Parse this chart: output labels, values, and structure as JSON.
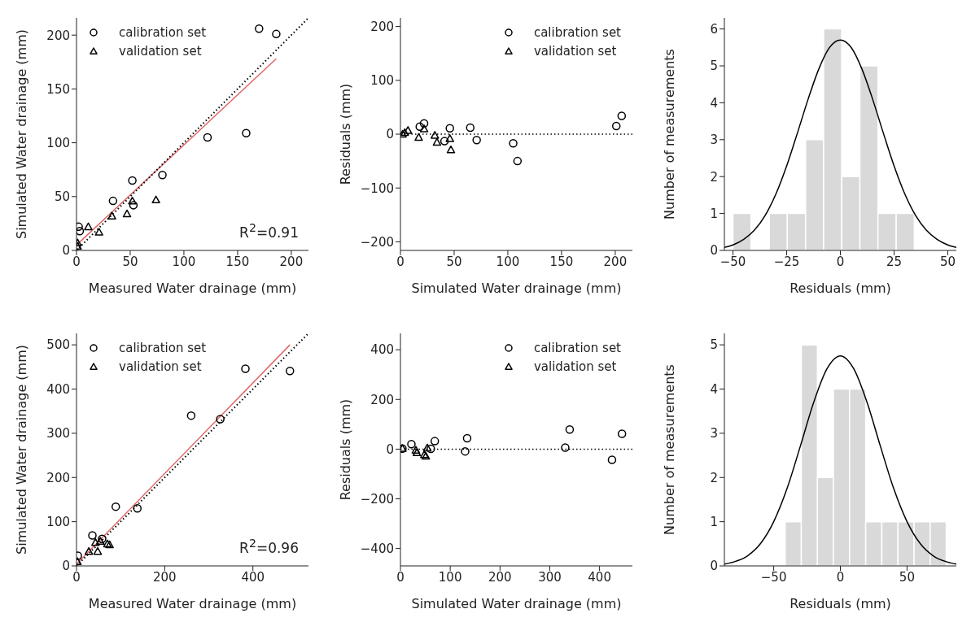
{
  "chart_data": [
    {
      "type": "scatter",
      "xlabel": "Measured Water drainage (mm)",
      "ylabel": "Simulated Water drainage (mm)",
      "xlim": [
        0,
        216
      ],
      "ylim": [
        0,
        216
      ],
      "xticks": [
        0,
        50,
        100,
        150,
        200
      ],
      "yticks": [
        0,
        50,
        100,
        150,
        200
      ],
      "legend": "top left",
      "annotations": [
        "R$^{2}$=0.91"
      ],
      "series": [
        {
          "name": "calibration set",
          "color": "#000000",
          "marker": "circle",
          "x": [
            2,
            3,
            34,
            52,
            53,
            80,
            122,
            158,
            170,
            186
          ],
          "values": [
            22,
            18,
            46,
            65,
            42,
            70,
            105,
            109,
            206,
            201
          ]
        },
        {
          "name": "validation set",
          "color": "#000000",
          "marker": "triangle",
          "x": [
            1,
            1,
            11,
            21,
            33,
            47,
            52,
            74
          ],
          "values": [
            4,
            7,
            22,
            17,
            32,
            34,
            46,
            47
          ]
        },
        {
          "type": "line",
          "color": "#e06666",
          "x": [
            0,
            186
          ],
          "values": [
            5,
            178
          ]
        },
        {
          "type": "line",
          "color": "#000000",
          "line_style": "dotted",
          "x": [
            0,
            216
          ],
          "values": [
            0,
            216
          ]
        }
      ]
    },
    {
      "type": "scatter",
      "xlabel": "Simulated Water drainage (mm)",
      "ylabel": "Residuals (mm)",
      "xlim": [
        0,
        216
      ],
      "ylim": [
        -216,
        216
      ],
      "xticks": [
        0,
        50,
        100,
        150,
        200
      ],
      "yticks": [
        -200,
        -100,
        0,
        100,
        200
      ],
      "legend": "top right",
      "ref_lines": [
        {
          "axis": "y",
          "value": 0,
          "color": "#000000",
          "line_style": "dotted"
        }
      ],
      "series": [
        {
          "name": "calibration set",
          "color": "#000000",
          "marker": "circle",
          "x": [
            18,
            22,
            41,
            46,
            65,
            71,
            105,
            109,
            201,
            206
          ],
          "values": [
            14,
            20,
            -13,
            11,
            12,
            -11,
            -17,
            -50,
            15,
            34
          ]
        },
        {
          "name": "validation set",
          "color": "#000000",
          "marker": "triangle",
          "x": [
            2,
            4,
            7,
            17,
            22,
            32,
            34,
            46,
            47
          ],
          "values": [
            0,
            3,
            7,
            -6,
            10,
            -2,
            -15,
            -8,
            -29
          ]
        }
      ]
    },
    {
      "type": "histogram",
      "xlabel": "Residuals (mm)",
      "ylabel": "Number of measurements",
      "xlim": [
        -54,
        54
      ],
      "ylim": [
        0,
        6.3
      ],
      "xticks": [
        -50,
        -25,
        0,
        25,
        50
      ],
      "yticks": [
        0,
        1,
        2,
        3,
        4,
        5,
        6
      ],
      "series": [
        {
          "color": "#d9d9d9",
          "bins": [
            -50,
            -41.6,
            -33.1,
            -24.7,
            -16.2,
            -7.8,
            0.6,
            9.1,
            17.5,
            26,
            34.4
          ],
          "values": [
            1,
            0,
            1,
            1,
            3,
            6,
            2,
            5,
            1,
            1
          ]
        },
        {
          "type": "line",
          "color": "#000000",
          "x": [
            -54,
            -50,
            -45,
            -40,
            -35,
            -30,
            -25,
            -20,
            -15,
            -10,
            -5,
            0,
            5,
            10,
            15,
            20,
            25,
            30,
            35,
            40,
            45,
            50,
            54
          ],
          "values": [
            0.08,
            0.15,
            0.3,
            0.55,
            0.95,
            1.53,
            2.29,
            3.18,
            4.1,
            4.92,
            5.5,
            5.7,
            5.5,
            4.92,
            4.1,
            3.18,
            2.29,
            1.53,
            0.95,
            0.55,
            0.3,
            0.15,
            0.08
          ]
        }
      ]
    },
    {
      "type": "scatter",
      "xlabel": "Measured Water drainage (mm)",
      "ylabel": "Simulated Water drainage (mm)",
      "xlim": [
        0,
        526
      ],
      "ylim": [
        0,
        526
      ],
      "xticks": [
        0,
        200,
        400
      ],
      "yticks": [
        0,
        100,
        200,
        300,
        400,
        500
      ],
      "legend": "top left",
      "annotations": [
        "R$^{2}$=0.96"
      ],
      "series": [
        {
          "name": "calibration set",
          "color": "#000000",
          "marker": "circle",
          "x": [
            3,
            36,
            58,
            89,
            138,
            260,
            326,
            383,
            484
          ],
          "values": [
            23,
            69,
            61,
            134,
            130,
            340,
            332,
            446,
            441
          ]
        },
        {
          "name": "validation set",
          "color": "#000000",
          "marker": "triangle",
          "x": [
            2,
            28,
            48,
            43,
            54,
            70,
            75
          ],
          "values": [
            10,
            33,
            33,
            53,
            56,
            50,
            48
          ]
        },
        {
          "type": "line",
          "color": "#e06666",
          "x": [
            0,
            484
          ],
          "values": [
            4,
            500
          ]
        },
        {
          "type": "line",
          "color": "#000000",
          "line_style": "dotted",
          "x": [
            0,
            526
          ],
          "values": [
            0,
            526
          ]
        }
      ]
    },
    {
      "type": "scatter",
      "xlabel": "Simulated Water drainage (mm)",
      "ylabel": "Residuals (mm)",
      "xlim": [
        0,
        466
      ],
      "ylim": [
        -470,
        466
      ],
      "xticks": [
        0,
        100,
        200,
        300,
        400
      ],
      "yticks": [
        -400,
        -200,
        0,
        200,
        400
      ],
      "legend": "top right",
      "ref_lines": [
        {
          "axis": "y",
          "value": 0,
          "color": "#000000",
          "line_style": "dotted"
        }
      ],
      "series": [
        {
          "name": "calibration set",
          "color": "#000000",
          "marker": "circle",
          "x": [
            4,
            22,
            61,
            69,
            130,
            134,
            331,
            340,
            425,
            445
          ],
          "values": [
            2,
            20,
            1,
            32,
            -9,
            44,
            6,
            79,
            -43,
            62
          ]
        },
        {
          "name": "validation set",
          "color": "#000000",
          "marker": "triangle",
          "x": [
            4,
            31,
            33,
            48,
            51,
            54
          ],
          "values": [
            3,
            -4,
            -14,
            -22,
            -28,
            5
          ]
        }
      ]
    },
    {
      "type": "histogram",
      "xlabel": "Residuals (mm)",
      "ylabel": "Number of measurements",
      "xlim": [
        -87,
        87
      ],
      "ylim": [
        0,
        5.26
      ],
      "xticks": [
        -50,
        0,
        50
      ],
      "yticks": [
        0,
        1,
        2,
        3,
        4,
        5
      ],
      "series": [
        {
          "color": "#d9d9d9",
          "bins": [
            -41.4,
            -29.3,
            -17.2,
            -5.2,
            6.9,
            19,
            31.1,
            43.2,
            55.3,
            67.4,
            79.4
          ],
          "values": [
            1,
            5,
            2,
            4,
            4,
            1,
            1,
            1,
            1,
            1
          ]
        },
        {
          "type": "line",
          "color": "#000000",
          "x": [
            -87,
            -80,
            -70,
            -60,
            -50,
            -40,
            -30,
            -20,
            -10,
            0,
            10,
            20,
            30,
            40,
            50,
            60,
            70,
            80,
            87
          ],
          "values": [
            0.04,
            0.09,
            0.22,
            0.5,
            1,
            1.75,
            2.71,
            3.7,
            4.46,
            4.75,
            4.46,
            3.7,
            2.71,
            1.75,
            1,
            0.5,
            0.22,
            0.09,
            0.04
          ]
        }
      ]
    }
  ]
}
